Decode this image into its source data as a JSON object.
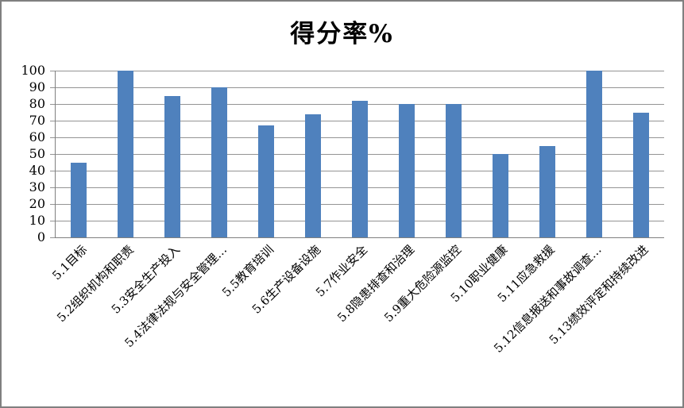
{
  "window": {
    "background": "#ffffff",
    "border_color": "#808080"
  },
  "chart_data": {
    "type": "bar",
    "title": "得分率%",
    "categories": [
      "5.1目标",
      "5.2组织机构和职责",
      "5.3安全生产投入",
      "5.4法律法规与安全管理…",
      "5.5教育培训",
      "5.6生产设备设施",
      "5.7作业安全",
      "5.8隐患排查和治理",
      "5.9重大危险源监控",
      "5.10职业健康",
      "5.11应急救援",
      "5.12信息报送和事故调查…",
      "5.13绩效评定和持续改进"
    ],
    "values": [
      45,
      100,
      85,
      90,
      67,
      74,
      82,
      80,
      80,
      50,
      55,
      100,
      75
    ],
    "yticks": [
      0,
      10,
      20,
      30,
      40,
      50,
      60,
      70,
      80,
      90,
      100
    ],
    "ylim": [
      0,
      100
    ],
    "xlabel": "",
    "ylabel": "",
    "grid": true,
    "legend_position": "none",
    "x_label_rotation_deg": 45,
    "bar_color": "#4F81BD",
    "gridline_color": "#949494",
    "axis_color": "#808080"
  }
}
